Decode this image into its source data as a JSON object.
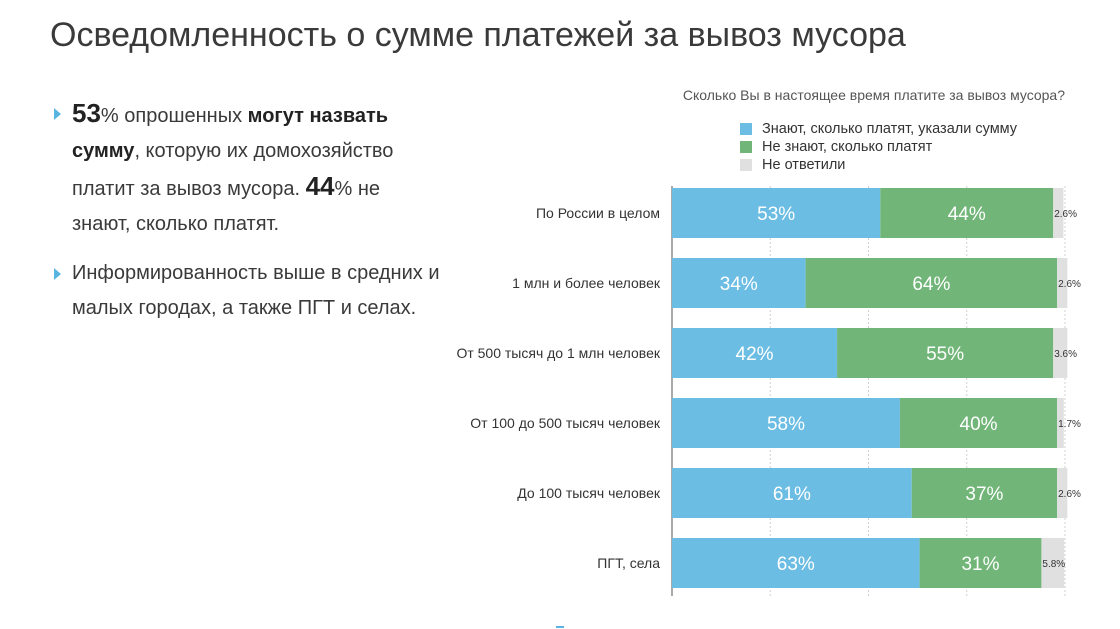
{
  "title": "Осведомленность о сумме платежей за вывоз мусора",
  "bullets": [
    {
      "parts": [
        {
          "text": "53",
          "style": "big"
        },
        {
          "text": "% опрошенных ",
          "style": "normal"
        },
        {
          "text": "могут назвать сумму",
          "style": "bold"
        },
        {
          "text": ", которую их домохозяйство платит за вывоз мусора. ",
          "style": "normal"
        },
        {
          "text": "44",
          "style": "big"
        },
        {
          "text": "% не знают, сколько платят.",
          "style": "normal"
        }
      ]
    },
    {
      "parts": [
        {
          "text": "Информированность выше в средних и малых городах, а также ПГТ и селах.",
          "style": "normal"
        }
      ]
    }
  ],
  "colors": {
    "know": "#6cbde3",
    "dont_know": "#71b678",
    "no_answer": "#e0e0e0",
    "marker": "#5ab4e0",
    "grid": "#d0d0d0"
  },
  "chart_data": {
    "type": "bar",
    "orientation": "horizontal",
    "stacked": true,
    "title": "Сколько Вы в настоящее время платите за вывоз мусора?",
    "legend_position": "top-right",
    "grid": true,
    "xlim": [
      0,
      100
    ],
    "categories": [
      "По России в целом",
      "1 млн и более человек",
      "От 500 тысяч до 1 млн человек",
      "От 100 до 500 тысяч человек",
      "До 100 тысяч человек",
      "ПГТ, села"
    ],
    "series": [
      {
        "name": "Знают, сколько платят, указали сумму",
        "values": [
          53,
          34,
          42,
          58,
          61,
          63
        ],
        "labels": [
          "53%",
          "34%",
          "42%",
          "58%",
          "61%",
          "63%"
        ]
      },
      {
        "name": "Не знают, сколько платят",
        "values": [
          44,
          64,
          55,
          40,
          37,
          31
        ],
        "labels": [
          "44%",
          "64%",
          "55%",
          "40%",
          "37%",
          "31%"
        ]
      },
      {
        "name": "Не ответили",
        "values": [
          2.6,
          2.6,
          3.6,
          1.7,
          2.6,
          5.8
        ],
        "labels": [
          "2.6%",
          "2.6%",
          "3.6%",
          "1.7%",
          "2.6%",
          "5.8%"
        ]
      }
    ]
  }
}
